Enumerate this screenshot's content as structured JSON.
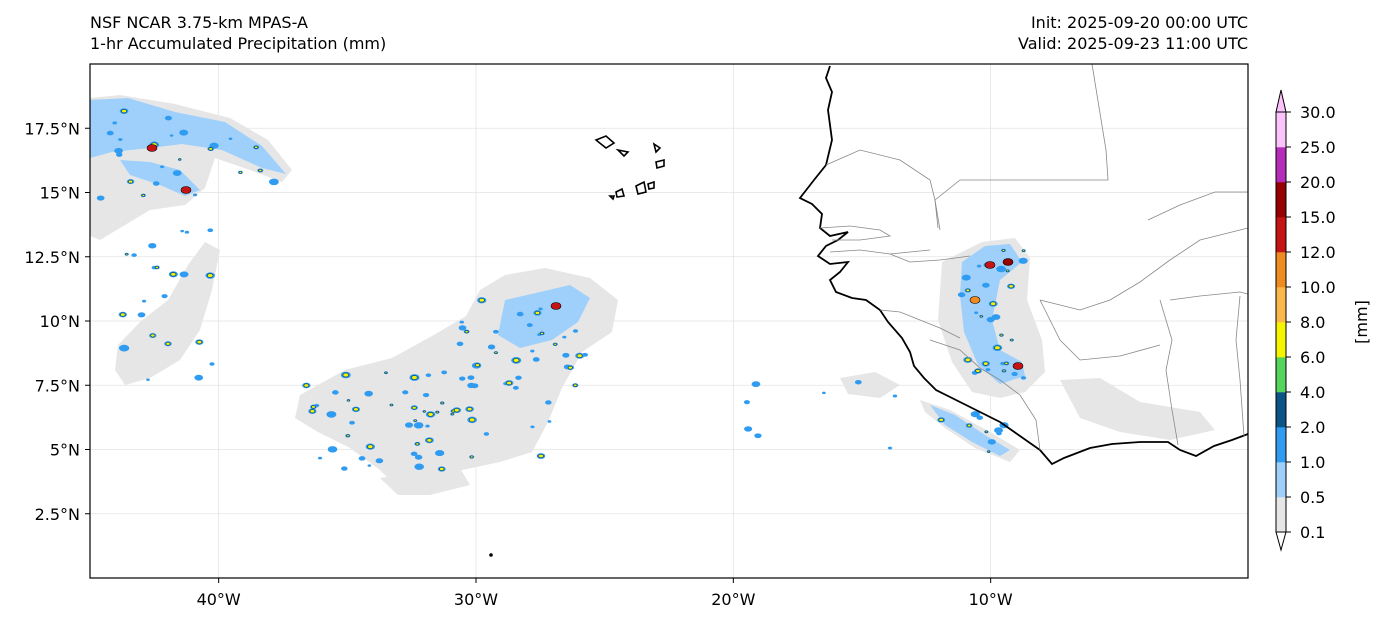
{
  "header": {
    "model": "NSF NCAR 3.75-km MPAS-A",
    "field": "1-hr Accumulated Precipitation (mm)",
    "init": "Init: 2025-09-20 00:00 UTC",
    "valid": "Valid: 2025-09-23 11:00 UTC"
  },
  "map": {
    "extent": {
      "lon": [
        -45,
        0
      ],
      "lat": [
        0,
        20
      ]
    },
    "lon_ticks": [
      {
        "value": -40,
        "label": "40°W"
      },
      {
        "value": -30,
        "label": "30°W"
      },
      {
        "value": -20,
        "label": "20°W"
      },
      {
        "value": -10,
        "label": "10°W"
      }
    ],
    "lat_ticks": [
      {
        "value": 2.5,
        "label": "2.5°N"
      },
      {
        "value": 5,
        "label": "5°N"
      },
      {
        "value": 7.5,
        "label": "7.5°N"
      },
      {
        "value": 10,
        "label": "10°N"
      },
      {
        "value": 12.5,
        "label": "12.5°N"
      },
      {
        "value": 15,
        "label": "15°N"
      },
      {
        "value": 17.5,
        "label": "17.5°N"
      }
    ],
    "gridlines": true
  },
  "colorbar": {
    "unit_label": "[mm]",
    "levels": [
      "0.1",
      "0.5",
      "1.0",
      "2.0",
      "4.0",
      "6.0",
      "8.0",
      "10.0",
      "12.0",
      "15.0",
      "20.0",
      "25.0",
      "30.0"
    ],
    "colors": [
      "#e6e6e6",
      "#9fd0fb",
      "#2f9cf2",
      "#0c5486",
      "#55d55c",
      "#f7f400",
      "#fbb84a",
      "#ef8c21",
      "#c51414",
      "#950000",
      "#b42cb8",
      "#fbc2fb"
    ],
    "extend": "both",
    "under_color": "#ffffff",
    "over_color": "#fbc2fb"
  }
}
